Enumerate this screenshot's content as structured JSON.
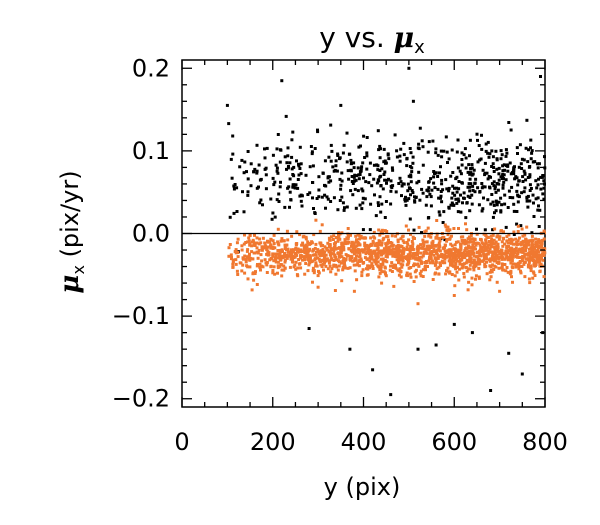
{
  "chart_data": {
    "type": "scatter",
    "title_prefix": "y vs. ",
    "title_symbol": "μ",
    "title_sub": "x",
    "xlabel": "y (pix)",
    "ylabel_symbol": "μ",
    "ylabel_sub": "x",
    "ylabel_unit": " (pix/yr)",
    "xlim": [
      0,
      800
    ],
    "ylim": [
      -0.21,
      0.21
    ],
    "x_ticks": [
      0,
      200,
      400,
      600,
      800
    ],
    "x_tick_labels": [
      "0",
      "200",
      "400",
      "600",
      "800"
    ],
    "y_ticks": [
      -0.2,
      -0.1,
      0.0,
      0.1,
      0.2
    ],
    "y_tick_labels": [
      "−0.2",
      "−0.1",
      "0.0",
      "0.1",
      "0.2"
    ],
    "reference_line_y": 0.0,
    "grid": false,
    "series": [
      {
        "color": "#000000",
        "marker_size": 3,
        "count": 700,
        "x_range": [
          100,
          800
        ],
        "y_center": 0.065,
        "y_spread": 0.025,
        "outliers": [
          {
            "x": 100,
            "y": 0.155
          },
          {
            "x": 220,
            "y": 0.185
          },
          {
            "x": 350,
            "y": 0.155
          },
          {
            "x": 500,
            "y": 0.2
          },
          {
            "x": 510,
            "y": 0.16
          },
          {
            "x": 790,
            "y": 0.19
          },
          {
            "x": 420,
            "y": -0.165
          },
          {
            "x": 460,
            "y": -0.195
          },
          {
            "x": 560,
            "y": -0.135
          },
          {
            "x": 680,
            "y": -0.19
          },
          {
            "x": 750,
            "y": -0.17
          },
          {
            "x": 370,
            "y": -0.14
          },
          {
            "x": 280,
            "y": -0.115
          },
          {
            "x": 640,
            "y": -0.12
          },
          {
            "x": 720,
            "y": -0.145
          },
          {
            "x": 520,
            "y": -0.14
          },
          {
            "x": 600,
            "y": -0.11
          },
          {
            "x": 795,
            "y": -0.12
          }
        ]
      },
      {
        "color": "#f07830",
        "marker_size": 3,
        "count": 1800,
        "x_range": [
          100,
          800
        ],
        "y_center": -0.025,
        "y_spread": 0.013,
        "outliers": [
          {
            "x": 380,
            "y": -0.07
          },
          {
            "x": 520,
            "y": -0.085
          },
          {
            "x": 600,
            "y": -0.075
          },
          {
            "x": 300,
            "y": -0.065
          },
          {
            "x": 700,
            "y": -0.07
          },
          {
            "x": 440,
            "y": -0.06
          }
        ]
      }
    ]
  }
}
